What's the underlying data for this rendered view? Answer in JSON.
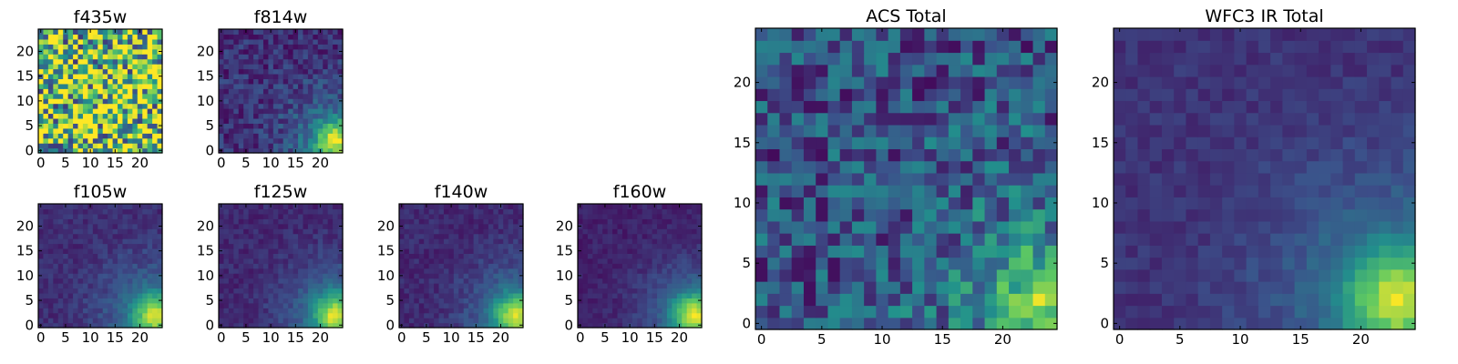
{
  "figure": {
    "colormap_stops": [
      "#440154",
      "#3b528b",
      "#21918c",
      "#5ec962",
      "#fde725"
    ]
  },
  "chart_data": [
    {
      "type": "heatmap",
      "title": "f435w",
      "size": 25,
      "xticks": [
        0,
        5,
        10,
        15,
        20
      ],
      "yticks": [
        0,
        5,
        10,
        15,
        20
      ],
      "xlim": [
        -0.5,
        24.5
      ],
      "ylim": [
        -0.5,
        24.5
      ],
      "pattern": "noise",
      "peak": [
        23,
        2
      ],
      "base": 0.72,
      "spread": 0.5,
      "noise": 0.55
    },
    {
      "type": "heatmap",
      "title": "f814w",
      "size": 25,
      "xticks": [
        0,
        5,
        10,
        15,
        20
      ],
      "yticks": [
        0,
        5,
        10,
        15,
        20
      ],
      "xlim": [
        -0.5,
        24.5
      ],
      "ylim": [
        -0.5,
        24.5
      ],
      "pattern": "peak",
      "peak": [
        23,
        2
      ],
      "base": 0.25,
      "spread": 0.75,
      "noise": 0.12
    },
    {
      "type": "heatmap",
      "title": "f105w",
      "size": 25,
      "xticks": [
        0,
        5,
        10,
        15,
        20
      ],
      "yticks": [
        0,
        5,
        10,
        15,
        20
      ],
      "xlim": [
        -0.5,
        24.5
      ],
      "ylim": [
        -0.5,
        24.5
      ],
      "pattern": "peak",
      "peak": [
        23,
        2
      ],
      "base": 0.25,
      "spread": 0.75,
      "noise": 0.06
    },
    {
      "type": "heatmap",
      "title": "f125w",
      "size": 25,
      "xticks": [
        0,
        5,
        10,
        15,
        20
      ],
      "yticks": [
        0,
        5,
        10,
        15,
        20
      ],
      "xlim": [
        -0.5,
        24.5
      ],
      "ylim": [
        -0.5,
        24.5
      ],
      "pattern": "peak",
      "peak": [
        23,
        2
      ],
      "base": 0.22,
      "spread": 0.78,
      "noise": 0.06
    },
    {
      "type": "heatmap",
      "title": "f140w",
      "size": 25,
      "xticks": [
        0,
        5,
        10,
        15,
        20
      ],
      "yticks": [
        0,
        5,
        10,
        15,
        20
      ],
      "xlim": [
        -0.5,
        24.5
      ],
      "ylim": [
        -0.5,
        24.5
      ],
      "pattern": "peak",
      "peak": [
        23,
        2
      ],
      "base": 0.22,
      "spread": 0.78,
      "noise": 0.06
    },
    {
      "type": "heatmap",
      "title": "f160w",
      "size": 25,
      "xticks": [
        0,
        5,
        10,
        15,
        20
      ],
      "yticks": [
        0,
        5,
        10,
        15,
        20
      ],
      "xlim": [
        -0.5,
        24.5
      ],
      "ylim": [
        -0.5,
        24.5
      ],
      "pattern": "peak",
      "peak": [
        23,
        2
      ],
      "base": 0.18,
      "spread": 0.82,
      "noise": 0.05
    },
    {
      "type": "heatmap",
      "title": "ACS Total",
      "size": 25,
      "xticks": [
        0,
        5,
        10,
        15,
        20
      ],
      "yticks": [
        0,
        5,
        10,
        15,
        20
      ],
      "xlim": [
        -0.5,
        24.5
      ],
      "ylim": [
        -0.5,
        24.5
      ],
      "pattern": "peak",
      "peak": [
        23,
        2
      ],
      "base": 0.45,
      "spread": 0.55,
      "noise": 0.22
    },
    {
      "type": "heatmap",
      "title": "WFC3 IR Total",
      "size": 25,
      "xticks": [
        0,
        5,
        10,
        15,
        20
      ],
      "yticks": [
        0,
        5,
        10,
        15,
        20
      ],
      "xlim": [
        -0.5,
        24.5
      ],
      "ylim": [
        -0.5,
        24.5
      ],
      "pattern": "peak",
      "peak": [
        23,
        2
      ],
      "base": 0.28,
      "spread": 0.72,
      "noise": 0.05
    }
  ]
}
